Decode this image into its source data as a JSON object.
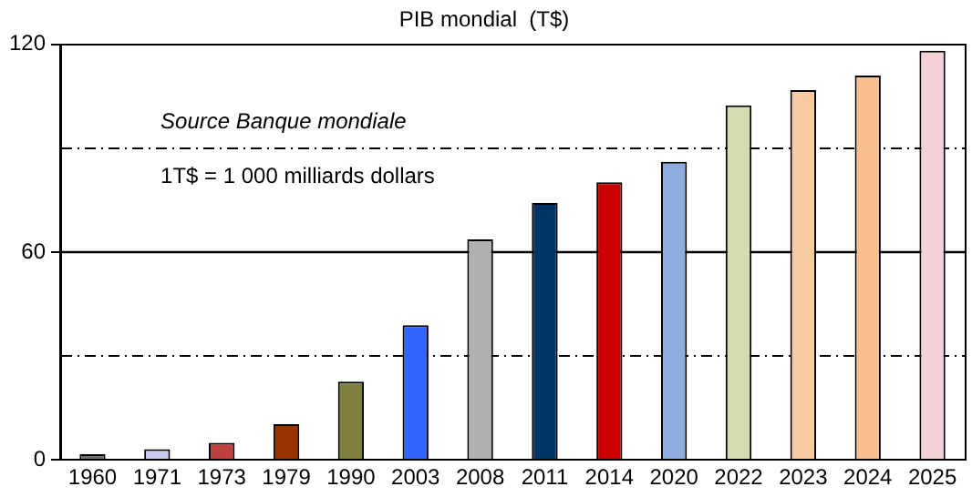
{
  "chart_data": {
    "type": "bar",
    "title": "PIB mondial  (T$)",
    "categories": [
      "1960",
      "1971",
      "1973",
      "1979",
      "1990",
      "2003",
      "2008",
      "2011",
      "2014",
      "2020",
      "2022",
      "2023",
      "2024",
      "2025"
    ],
    "values": [
      1.6,
      3.1,
      4.9,
      10.3,
      22.6,
      38.9,
      63.7,
      74.2,
      80.2,
      86.1,
      102.4,
      106.8,
      111.0,
      118.2
    ],
    "colors": [
      "#707070",
      "#c8c8e8",
      "#c04040",
      "#993300",
      "#808040",
      "#3366ff",
      "#b0b0b0",
      "#003366",
      "#cc0000",
      "#8faadc",
      "#d6dcb0",
      "#f8cba0",
      "#f8c090",
      "#f2d0d8"
    ],
    "ylim": [
      0,
      120
    ],
    "yticks": [
      0,
      {
        "value": 30,
        "label": null
      },
      60,
      {
        "value": 90,
        "label": null
      },
      120
    ],
    "grid": "y",
    "ref_lines": [
      {
        "axis": "y",
        "value": 60,
        "color": "#000000",
        "line_style": "solid"
      }
    ],
    "legend": false,
    "annotations": [
      "Source Banque mondiale",
      "1T$ = 1 000 milliards dollars"
    ]
  }
}
